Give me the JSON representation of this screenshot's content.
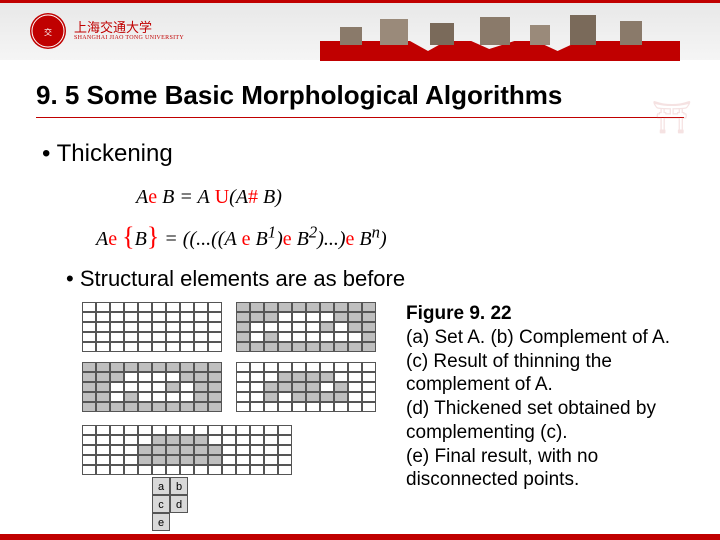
{
  "header": {
    "university_name_cn": "上海交通大学",
    "university_name_sub": "SHANGHAI JIAO TONG UNIVERSITY",
    "banner_color": "#c00000"
  },
  "title": "9. 5 Some Basic Morphological Algorithms",
  "main_bullet": "Thickening",
  "equations": {
    "line1": {
      "lhs_A": "A",
      "op1": "e ",
      "B": "B",
      "eq": " = ",
      "rhs_A": "A",
      "cup": " U",
      "open": "(",
      "A2": "A",
      "hash": "# ",
      "B2": "B",
      "close": ")"
    },
    "line2": {
      "lhs_A": "A",
      "op1": "e ",
      "brace": "{",
      "B": "B",
      "bracer": "}",
      "eq": " = ((...((",
      "A2": "A",
      "e2": " e ",
      "B1": "B",
      "sup1": "1",
      "close1": ")",
      "e3": "e ",
      "B2": "B",
      "sup2": "2",
      "close2": ")...)",
      "e4": "e ",
      "Bn": "B",
      "supn": "n",
      "final": ")"
    }
  },
  "sub_bullet": "Structural elements are as before",
  "grid_a": [
    "..........",
    "..........",
    "..........",
    "..........",
    ".........."
  ],
  "grid_b": [
    "##########",
    "###....###",
    "#.....#.##",
    "#.#......#",
    "##########"
  ],
  "grid_c": [
    "##########",
    "###....###",
    "##....#.##",
    "##.#....##",
    "##########"
  ],
  "grid_d": [
    "..........",
    "...####...",
    "..####.#..",
    "..#.####..",
    ".........."
  ],
  "grid_e": [
    "...............",
    ".....####......",
    "....######.....",
    "....######.....",
    "..............."
  ],
  "label_grid": [
    "a",
    "b",
    "c",
    "d",
    "e",
    ""
  ],
  "caption": {
    "title": "Figure 9. 22",
    "lines": [
      "(a) Set A. (b) Complement of A. (c) Result of thinning the complement of A.",
      "(d) Thickened set obtained by complementing (c).",
      "(e) Final result, with no disconnected points."
    ]
  },
  "colors": {
    "accent": "#c00000",
    "cell_fill": "#bfbfbf",
    "cell_border": "#555",
    "text": "#000",
    "eq_red": "#ff0000"
  }
}
